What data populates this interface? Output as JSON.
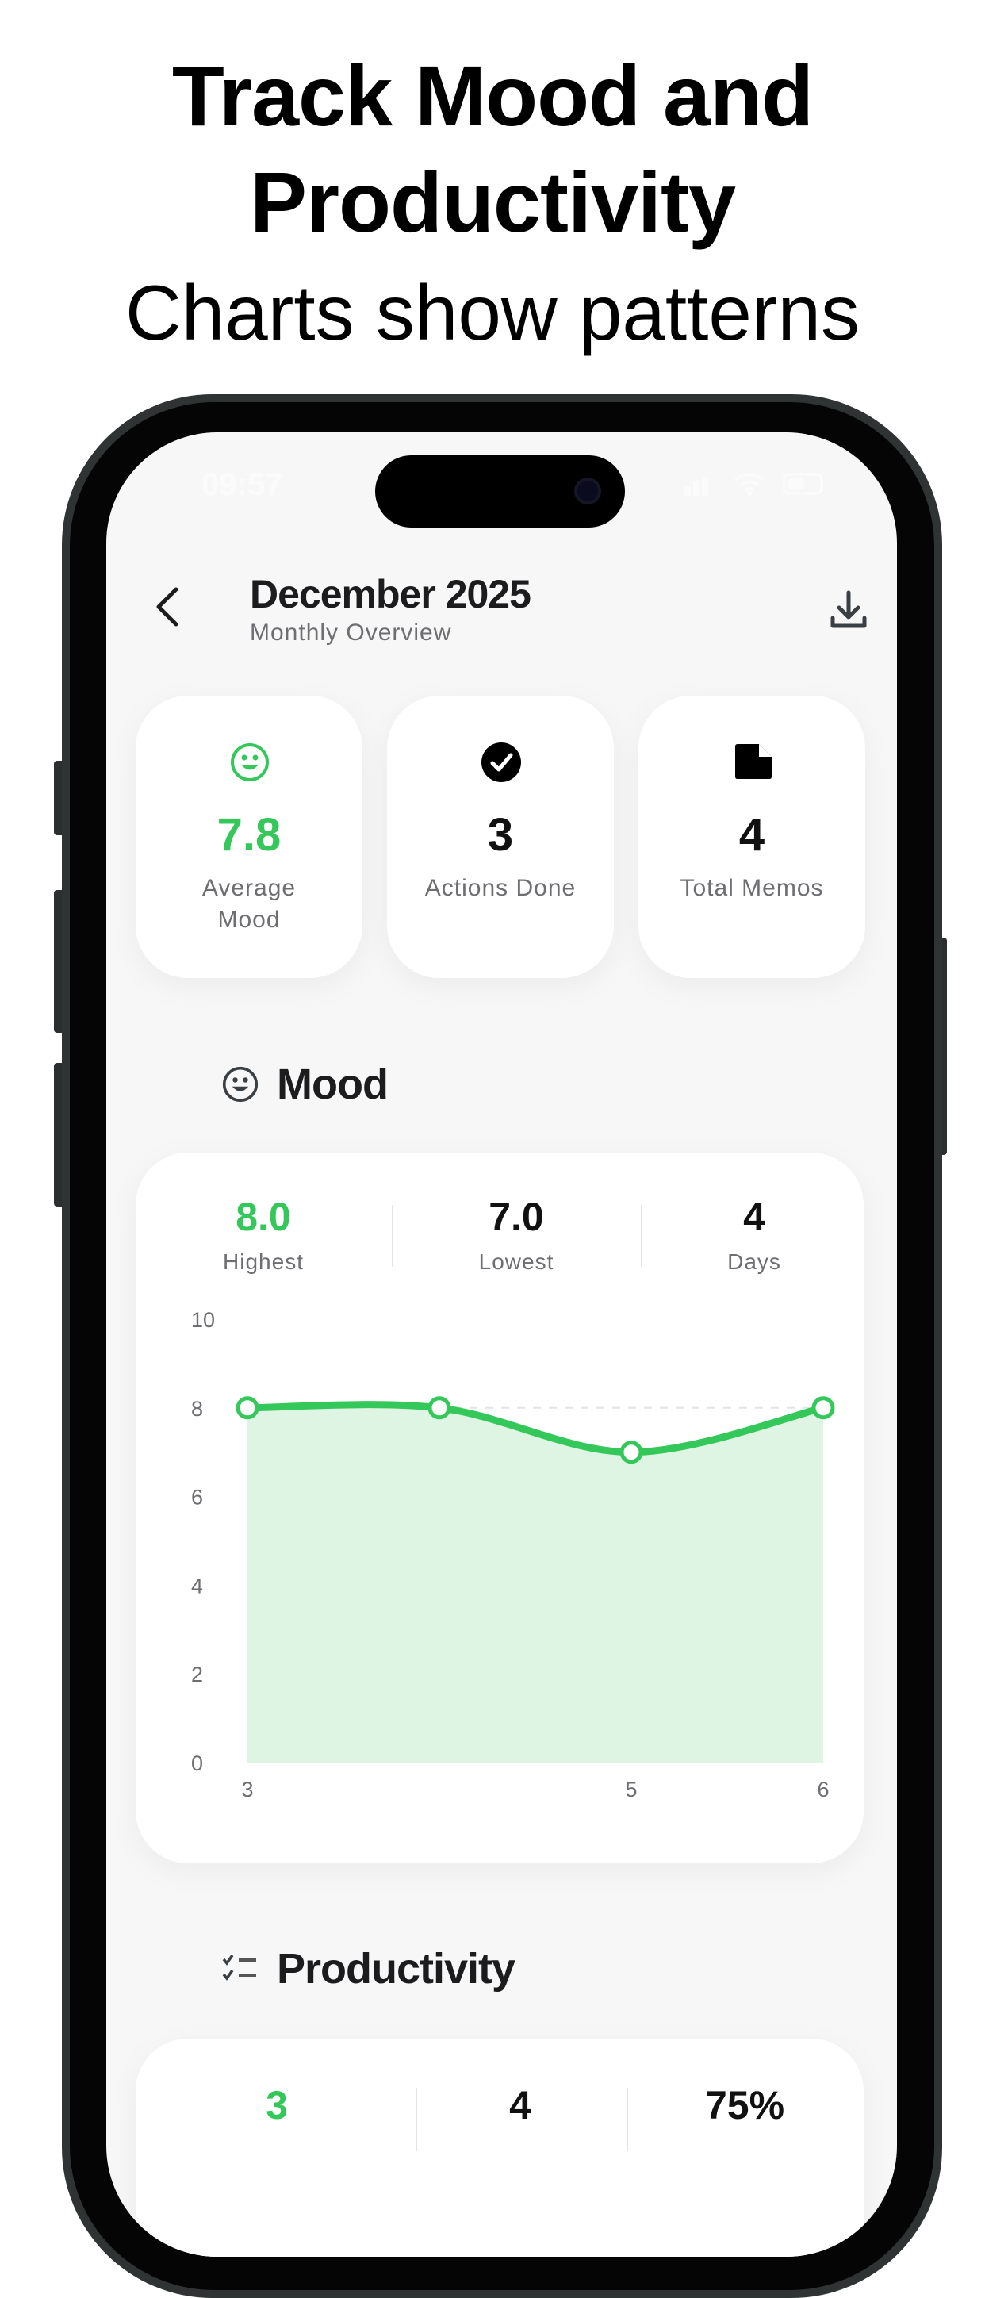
{
  "promo": {
    "title_line1": "Track Mood and",
    "title_line2": "Productivity",
    "subtitle": "Charts show patterns"
  },
  "status_bar": {
    "time": "09:57"
  },
  "header": {
    "title": "December 2025",
    "subtitle": "Monthly Overview",
    "back_icon": "chevron-left-icon",
    "export_icon": "download-icon"
  },
  "summary_cards": [
    {
      "icon": "smiley-icon",
      "value": "7.8",
      "label": "Average Mood",
      "color": "#34c759"
    },
    {
      "icon": "checkmark-circle-icon",
      "value": "3",
      "label": "Actions Done",
      "color": "#000000"
    },
    {
      "icon": "document-icon",
      "value": "4",
      "label": "Total Memos",
      "color": "#000000"
    }
  ],
  "mood": {
    "heading": "Mood",
    "stats": [
      {
        "value": "8.0",
        "label": "Highest"
      },
      {
        "value": "7.0",
        "label": "Lowest"
      },
      {
        "value": "4",
        "label": "Days"
      }
    ]
  },
  "productivity": {
    "heading": "Productivity",
    "stats": [
      {
        "value": "3"
      },
      {
        "value": "4"
      },
      {
        "value": "75%"
      }
    ]
  },
  "colors": {
    "accent": "#34c759",
    "area_fill": "#dff5e3"
  },
  "chart_data": {
    "type": "area",
    "x_labels": [
      "3",
      "",
      "5",
      "6"
    ],
    "values": [
      8,
      8,
      7,
      8
    ],
    "ylim": [
      0,
      10
    ],
    "yticks": [
      "0",
      "2",
      "4",
      "6",
      "8",
      "10"
    ],
    "grid": "dashed horizontal",
    "smooth": true
  }
}
